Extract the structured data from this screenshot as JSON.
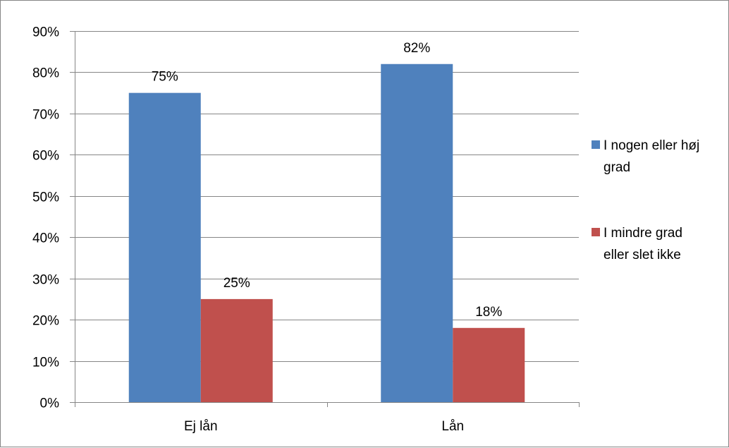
{
  "chart_data": {
    "type": "bar",
    "title": "",
    "xlabel": "",
    "ylabel": "",
    "categories": [
      "Ej lån",
      "Lån"
    ],
    "series": [
      {
        "name": "I nogen eller høj grad",
        "values": [
          75,
          82
        ],
        "labels": [
          "75%",
          "82%"
        ],
        "color": "#4F81BD"
      },
      {
        "name": "I mindre grad eller slet ikke",
        "values": [
          25,
          18
        ],
        "labels": [
          "25%",
          "18%"
        ],
        "color": "#C0504D"
      }
    ],
    "ylim": [
      0,
      90
    ],
    "yticks": [
      0,
      10,
      20,
      30,
      40,
      50,
      60,
      70,
      80,
      90
    ],
    "ytick_labels": [
      "0%",
      "10%",
      "20%",
      "30%",
      "40%",
      "50%",
      "60%",
      "70%",
      "80%",
      "90%"
    ],
    "grid": true,
    "legend_position": "right",
    "legend_lines": [
      [
        "I nogen eller høj",
        "grad"
      ],
      [
        "I mindre grad",
        "eller slet ikke"
      ]
    ]
  }
}
